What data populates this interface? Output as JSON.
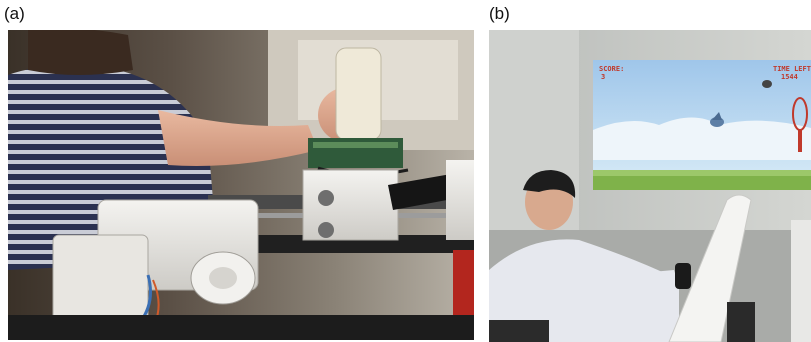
{
  "panels": {
    "a": {
      "label": "(a)"
    },
    "b": {
      "label": "(b)"
    }
  },
  "game_screen": {
    "score_label": "SCORE:",
    "score_value": "3",
    "time_label": "TIME LEFT",
    "time_value": "1544"
  }
}
